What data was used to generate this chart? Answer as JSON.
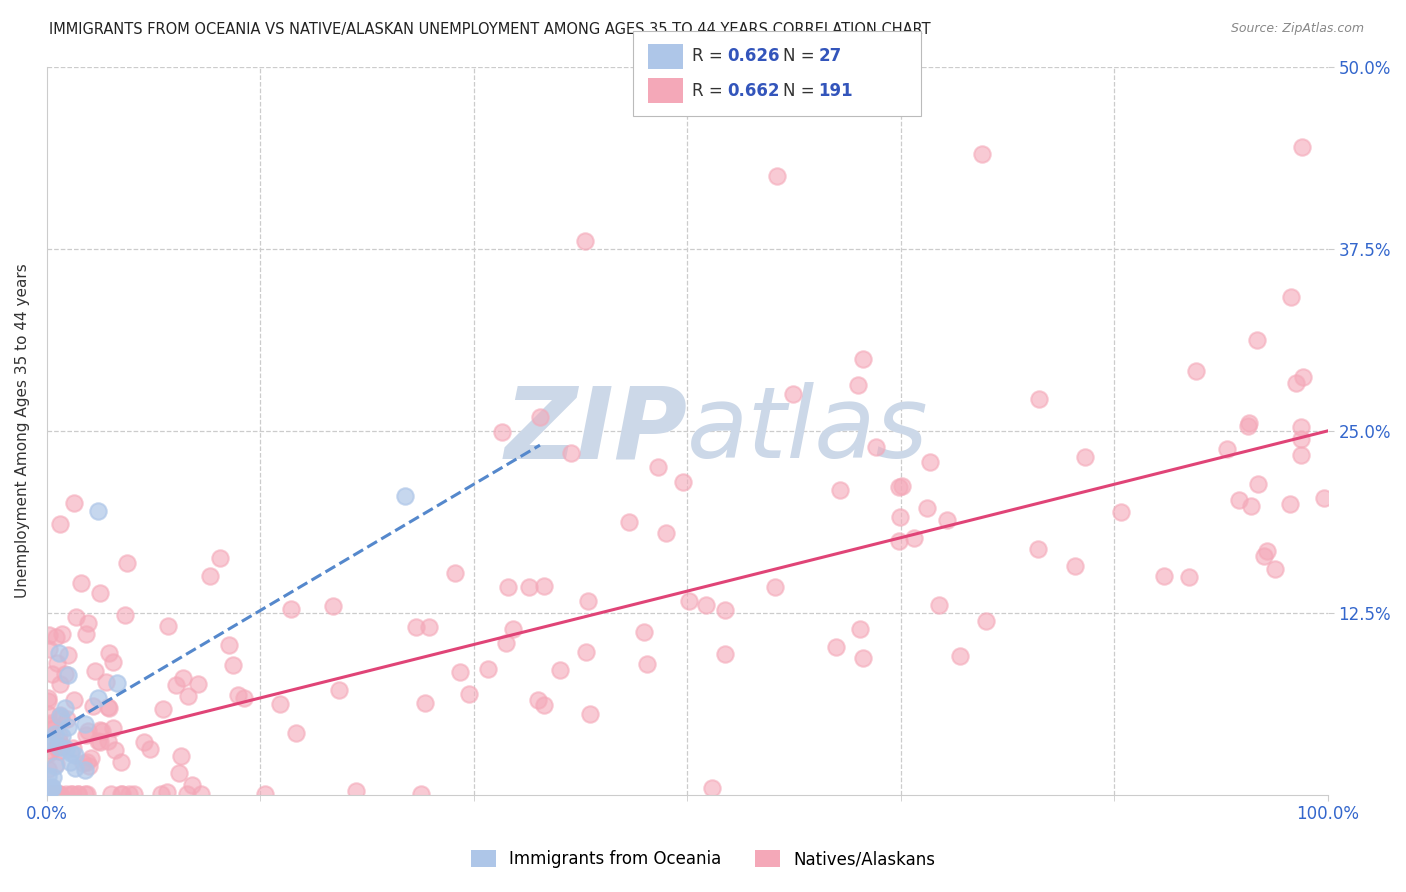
{
  "title": "IMMIGRANTS FROM OCEANIA VS NATIVE/ALASKAN UNEMPLOYMENT AMONG AGES 35 TO 44 YEARS CORRELATION CHART",
  "source": "Source: ZipAtlas.com",
  "ylabel": "Unemployment Among Ages 35 to 44 years",
  "xlim": [
    0,
    1.0
  ],
  "ylim": [
    0,
    0.5
  ],
  "xticklabels": [
    "0.0%",
    "100.0%"
  ],
  "ytick_positions": [
    0.125,
    0.25,
    0.375,
    0.5
  ],
  "ytick_labels": [
    "12.5%",
    "25.0%",
    "37.5%",
    "50.0%"
  ],
  "legend_R_blue": "0.626",
  "legend_N_blue": "27",
  "legend_R_pink": "0.662",
  "legend_N_pink": "191",
  "blue_color": "#aec6e8",
  "pink_color": "#f4a8b8",
  "trend_blue_color": "#5588cc",
  "trend_pink_color": "#e04477",
  "legend_text_color": "#3355bb",
  "watermark_color": "#ccd8e8",
  "background_color": "#ffffff",
  "grid_color": "#cccccc",
  "tick_label_color": "#3366cc",
  "title_color": "#222222",
  "source_color": "#888888"
}
